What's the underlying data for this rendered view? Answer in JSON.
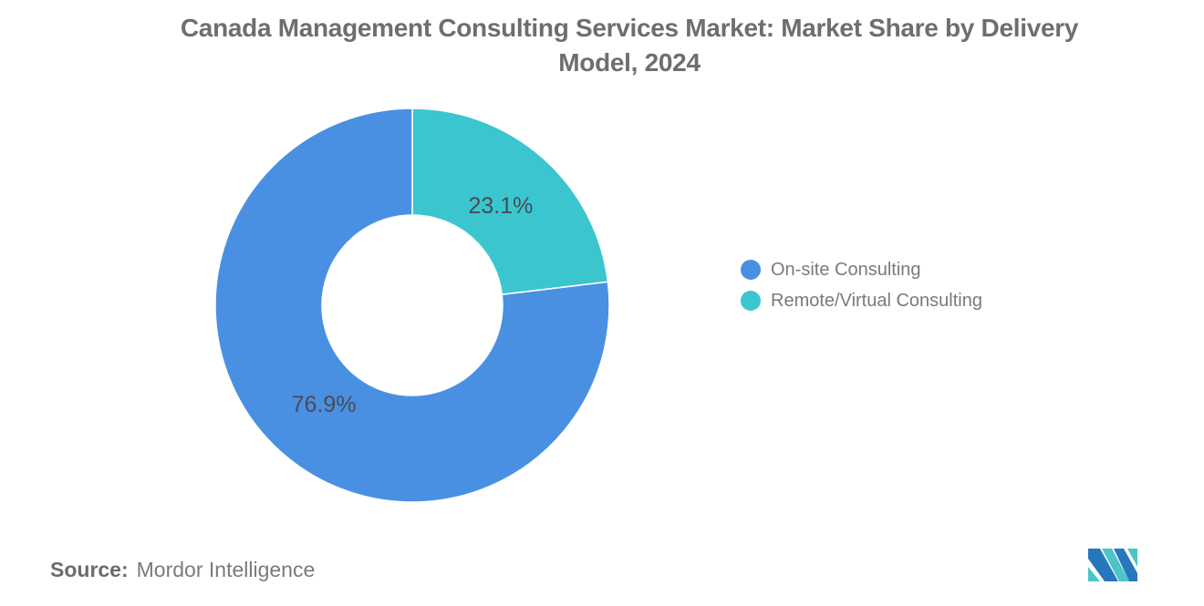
{
  "title": {
    "line1": "Canada Management Consulting Services Market: Market Share by Delivery",
    "line2": "Model, 2024",
    "full": "Canada Management Consulting Services Market: Market Share by Delivery Model, 2024"
  },
  "chart_data": {
    "type": "pie",
    "variant": "donut",
    "title": "Canada Management Consulting Services Market: Market Share by Delivery Model, 2024",
    "units": "percent",
    "start_angle": "top",
    "direction": "clockwise",
    "inner_radius_ratio": 0.46,
    "slices": [
      {
        "name": "Remote/Virtual Consulting",
        "value": 23.1,
        "label": "23.1%",
        "color": "#3BC6CF"
      },
      {
        "name": "On-site Consulting",
        "value": 76.9,
        "label": "76.9%",
        "color": "#4A90E2"
      }
    ],
    "legend_position": "right",
    "data_label_color": "#474C55",
    "background": "#FFFFFF"
  },
  "legend": {
    "items": [
      {
        "label": "On-site Consulting",
        "color": "#4A90E2"
      },
      {
        "label": "Remote/Virtual Consulting",
        "color": "#3BC6CF"
      }
    ]
  },
  "source": {
    "label": "Source:",
    "value": "Mordor Intelligence"
  },
  "logo": {
    "alt": "mordor-intelligence-logo",
    "blue": "#2777BC",
    "teal": "#4CC4C8"
  }
}
